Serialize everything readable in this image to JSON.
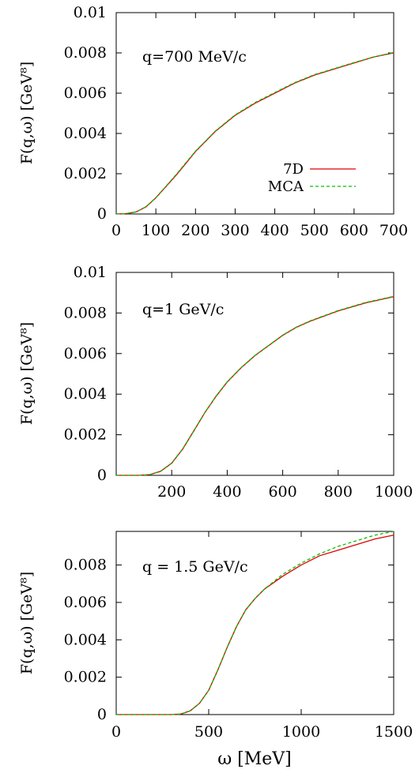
{
  "figure": {
    "xlabel": "ω [MeV]",
    "ylabel": "F(q,ω) [GeV⁸]"
  },
  "legend": {
    "entries": [
      {
        "label": "7D",
        "color": "#e00000",
        "dash": "solid"
      },
      {
        "label": "MCA",
        "color": "#00c000",
        "dash": "dashed"
      }
    ]
  },
  "chart_data": [
    {
      "type": "line",
      "annotation": "q=700 MeV/c",
      "xlim": [
        0,
        700
      ],
      "ylim": [
        0,
        0.01
      ],
      "xticks": [
        "0",
        "100",
        "200",
        "300",
        "400",
        "500",
        "600",
        "700"
      ],
      "xtick_values": [
        0,
        100,
        200,
        300,
        400,
        500,
        600,
        700
      ],
      "yticks": [
        "0",
        "0.002",
        "0.004",
        "0.006",
        "0.008",
        "0.01"
      ],
      "ytick_values": [
        0,
        0.002,
        0.004,
        0.006,
        0.008,
        0.01
      ],
      "legend": true,
      "series": [
        {
          "name": "7D",
          "color": "#e00000",
          "x": [
            0,
            25,
            50,
            75,
            100,
            125,
            150,
            175,
            200,
            250,
            300,
            350,
            400,
            450,
            500,
            550,
            600,
            650,
            700
          ],
          "y": [
            0,
            2e-05,
            0.0001,
            0.00035,
            0.0008,
            0.00135,
            0.0019,
            0.0025,
            0.0031,
            0.0041,
            0.0049,
            0.0055,
            0.006,
            0.0065,
            0.0069,
            0.0072,
            0.0075,
            0.0078,
            0.008
          ]
        },
        {
          "name": "MCA",
          "color": "#00c000",
          "x": [
            0,
            25,
            50,
            75,
            100,
            125,
            150,
            175,
            200,
            250,
            300,
            350,
            400,
            450,
            500,
            550,
            600,
            650,
            700
          ],
          "y": [
            0,
            2e-05,
            0.0001,
            0.00036,
            0.00081,
            0.00137,
            0.00193,
            0.00253,
            0.00312,
            0.00412,
            0.00492,
            0.00553,
            0.00603,
            0.00652,
            0.00692,
            0.00722,
            0.00752,
            0.0078,
            0.00802
          ]
        }
      ]
    },
    {
      "type": "line",
      "annotation": "q=1 GeV/c",
      "xlim": [
        0,
        1000
      ],
      "ylim": [
        0,
        0.01
      ],
      "xticks": [
        "200",
        "400",
        "600",
        "800",
        "1000"
      ],
      "xtick_values": [
        200,
        400,
        600,
        800,
        1000
      ],
      "yticks": [
        "0",
        "0.002",
        "0.004",
        "0.006",
        "0.008",
        "0.01"
      ],
      "ytick_values": [
        0,
        0.002,
        0.004,
        0.006,
        0.008,
        0.01
      ],
      "legend": false,
      "series": [
        {
          "name": "7D",
          "color": "#e00000",
          "x": [
            0,
            80,
            120,
            160,
            200,
            240,
            280,
            320,
            360,
            400,
            450,
            500,
            550,
            600,
            650,
            700,
            800,
            900,
            1000
          ],
          "y": [
            0,
            0,
            3e-05,
            0.0002,
            0.0006,
            0.0013,
            0.0022,
            0.0031,
            0.0039,
            0.0046,
            0.0053,
            0.0059,
            0.0064,
            0.0069,
            0.0073,
            0.0076,
            0.0081,
            0.0085,
            0.0088
          ]
        },
        {
          "name": "MCA",
          "color": "#00c000",
          "x": [
            0,
            80,
            120,
            160,
            200,
            240,
            280,
            320,
            360,
            400,
            450,
            500,
            550,
            600,
            650,
            700,
            800,
            900,
            1000
          ],
          "y": [
            0,
            0,
            3e-05,
            0.00021,
            0.00061,
            0.00131,
            0.00221,
            0.00311,
            0.00391,
            0.00461,
            0.00531,
            0.00591,
            0.00641,
            0.00691,
            0.00731,
            0.00762,
            0.00812,
            0.00852,
            0.00882
          ]
        }
      ]
    },
    {
      "type": "line",
      "annotation": "q = 1.5 GeV/c",
      "xlim": [
        0,
        1500
      ],
      "ylim": [
        0,
        0.0098
      ],
      "xticks": [
        "0",
        "500",
        "1000",
        "1500"
      ],
      "xtick_values": [
        0,
        500,
        1000,
        1500
      ],
      "yticks": [
        "0",
        "0.002",
        "0.004",
        "0.006",
        "0.008"
      ],
      "ytick_values": [
        0,
        0.002,
        0.004,
        0.006,
        0.008
      ],
      "legend": false,
      "series": [
        {
          "name": "7D",
          "color": "#e00000",
          "x": [
            0,
            300,
            350,
            400,
            450,
            500,
            550,
            600,
            650,
            700,
            750,
            800,
            900,
            1000,
            1100,
            1200,
            1300,
            1400,
            1500
          ],
          "y": [
            0,
            0,
            3e-05,
            0.0002,
            0.0006,
            0.0013,
            0.0024,
            0.0036,
            0.0047,
            0.0056,
            0.0062,
            0.0067,
            0.0074,
            0.008,
            0.0085,
            0.0088,
            0.0091,
            0.0094,
            0.0096
          ]
        },
        {
          "name": "MCA",
          "color": "#00c000",
          "x": [
            0,
            300,
            350,
            400,
            450,
            500,
            550,
            600,
            650,
            700,
            750,
            800,
            900,
            1000,
            1100,
            1200,
            1300,
            1400,
            1500
          ],
          "y": [
            0,
            0,
            3e-05,
            0.0002,
            0.0006,
            0.0013,
            0.0024,
            0.0036,
            0.0047,
            0.0056,
            0.0062,
            0.0067,
            0.0075,
            0.0081,
            0.0086,
            0.009,
            0.0093,
            0.0096,
            0.0098
          ]
        }
      ]
    }
  ]
}
